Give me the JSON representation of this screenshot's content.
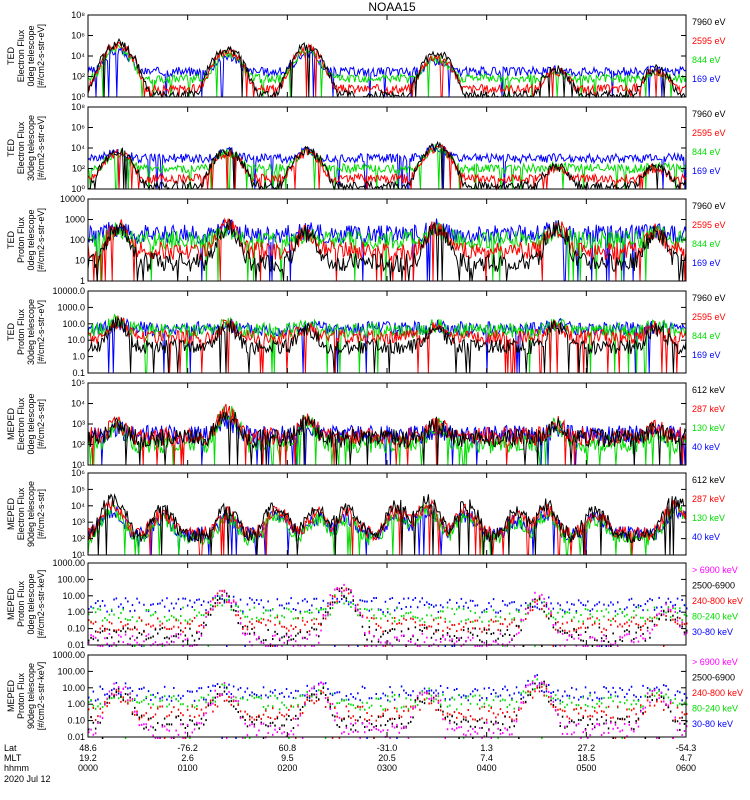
{
  "title": "NOAA15",
  "colors": {
    "blue": "#0000ff",
    "red": "#ff0000",
    "green": "#00dd00",
    "black": "#000000",
    "magenta": "#ff00ff"
  },
  "chart_data": [
    {
      "type": "line",
      "scale": "log",
      "ylabel_lines": [
        "TED",
        "Electron Flux",
        "0deg telescope",
        "[#/cm2-s-str-eV]"
      ],
      "yticks": [
        {
          "label": "10⁰",
          "v": 1
        },
        {
          "label": "10²",
          "v": 100
        },
        {
          "label": "10⁴",
          "v": 10000
        },
        {
          "label": "10⁶",
          "v": 1000000
        },
        {
          "label": "10⁸",
          "v": 100000000
        }
      ],
      "ylim": [
        1,
        100000000
      ],
      "legend": [
        {
          "text": "7960 eV",
          "color": "#000000"
        },
        {
          "text": "2595 eV",
          "color": "#ff0000"
        },
        {
          "text": "844 eV",
          "color": "#00dd00"
        },
        {
          "text": "169 eV",
          "color": "#0000ff"
        }
      ],
      "series": [
        {
          "name": "169 eV",
          "color": "#0000ff",
          "base": 300,
          "peakmul": 30
        },
        {
          "name": "844 eV",
          "color": "#00dd00",
          "base": 60,
          "peakmul": 20
        },
        {
          "name": "2595 eV",
          "color": "#ff0000",
          "base": 6,
          "peakmul": 10
        },
        {
          "name": "7960 eV",
          "color": "#000000",
          "base": 1.5,
          "peakmul": 6
        }
      ],
      "peaks": [
        0.3,
        1.4,
        2.2,
        3.5,
        4.7,
        5.7
      ],
      "peakheights": [
        1000000,
        300000,
        500000,
        100000,
        3000,
        3000
      ]
    },
    {
      "type": "line",
      "scale": "log",
      "ylabel_lines": [
        "TED",
        "Electron Flux",
        "30deg telescope",
        "[#/cm2-s-str-eV]"
      ],
      "yticks": [
        {
          "label": "10⁰",
          "v": 1
        },
        {
          "label": "10²",
          "v": 100
        },
        {
          "label": "10⁴",
          "v": 10000
        },
        {
          "label": "10⁶",
          "v": 1000000
        },
        {
          "label": "10⁸",
          "v": 100000000
        }
      ],
      "ylim": [
        1,
        100000000
      ],
      "legend": [
        {
          "text": "7960 eV",
          "color": "#000000"
        },
        {
          "text": "2595 eV",
          "color": "#ff0000"
        },
        {
          "text": "844 eV",
          "color": "#00dd00"
        },
        {
          "text": "169 eV",
          "color": "#0000ff"
        }
      ],
      "series": [
        {
          "name": "169 eV",
          "color": "#0000ff",
          "base": 1000,
          "peakmul": 30
        },
        {
          "name": "844 eV",
          "color": "#00dd00",
          "base": 100,
          "peakmul": 30
        },
        {
          "name": "2595 eV",
          "color": "#ff0000",
          "base": 10,
          "peakmul": 30
        },
        {
          "name": "7960 eV",
          "color": "#000000",
          "base": 2,
          "peakmul": 20
        }
      ],
      "peaks": [
        0.3,
        1.4,
        2.2,
        3.5,
        4.7,
        5.7
      ],
      "peakheights": [
        100000,
        100000,
        100000,
        300000,
        3000,
        3000
      ]
    },
    {
      "type": "line",
      "scale": "log",
      "ylabel_lines": [
        "TED",
        "Proton Flux",
        "0deg telescope",
        "[#/cm2-s-str-eV]"
      ],
      "yticks": [
        {
          "label": "1",
          "v": 1
        },
        {
          "label": "10",
          "v": 10
        },
        {
          "label": "100",
          "v": 100
        },
        {
          "label": "1000",
          "v": 1000
        },
        {
          "label": "10000",
          "v": 10000
        }
      ],
      "ylim": [
        1,
        10000
      ],
      "legend": [
        {
          "text": "7960 eV",
          "color": "#000000"
        },
        {
          "text": "2595 eV",
          "color": "#ff0000"
        },
        {
          "text": "844 eV",
          "color": "#00dd00"
        },
        {
          "text": "169 eV",
          "color": "#0000ff"
        }
      ],
      "series": [
        {
          "name": "169 eV",
          "color": "#0000ff",
          "base": 200,
          "peakmul": 10
        },
        {
          "name": "844 eV",
          "color": "#00dd00",
          "base": 100,
          "peakmul": 10
        },
        {
          "name": "2595 eV",
          "color": "#ff0000",
          "base": 30,
          "peakmul": 5
        },
        {
          "name": "7960 eV",
          "color": "#000000",
          "base": 8,
          "peakmul": 5
        }
      ],
      "peaks": [
        0.3,
        1.4,
        2.2,
        3.5,
        4.7,
        5.7
      ],
      "peakheights": [
        2000,
        2000,
        1000,
        2000,
        2000,
        1000
      ]
    },
    {
      "type": "line",
      "scale": "log",
      "ylabel_lines": [
        "TED",
        "Proton Flux",
        "30deg telescope",
        "[#/cm2-s-str-eV]"
      ],
      "yticks": [
        {
          "label": "0.1",
          "v": 0.1
        },
        {
          "label": "1.0",
          "v": 1
        },
        {
          "label": "10.0",
          "v": 10
        },
        {
          "label": "100.0",
          "v": 100
        },
        {
          "label": "1000.0",
          "v": 1000
        },
        {
          "label": "10000.0",
          "v": 10000
        }
      ],
      "ylim": [
        0.1,
        10000
      ],
      "legend": [
        {
          "text": "7960 eV",
          "color": "#000000"
        },
        {
          "text": "2595 eV",
          "color": "#ff0000"
        },
        {
          "text": "844 eV",
          "color": "#00dd00"
        },
        {
          "text": "169 eV",
          "color": "#0000ff"
        }
      ],
      "series": [
        {
          "name": "169 eV",
          "color": "#0000ff",
          "base": 50,
          "peakmul": 10
        },
        {
          "name": "844 eV",
          "color": "#00dd00",
          "base": 40,
          "peakmul": 5
        },
        {
          "name": "2595 eV",
          "color": "#ff0000",
          "base": 15,
          "peakmul": 5
        },
        {
          "name": "7960 eV",
          "color": "#000000",
          "base": 4,
          "peakmul": 5
        }
      ],
      "peaks": [
        0.3,
        1.4,
        2.2,
        3.5,
        4.7,
        5.7
      ],
      "peakheights": [
        500,
        300,
        200,
        200,
        300,
        200
      ]
    },
    {
      "type": "line",
      "scale": "log",
      "ylabel_lines": [
        "MEPED",
        "Electron Flux",
        "0deg telescope",
        "[#/cm2-s-str]"
      ],
      "yticks": [
        {
          "label": "10¹",
          "v": 10
        },
        {
          "label": "10²",
          "v": 100
        },
        {
          "label": "10³",
          "v": 1000
        },
        {
          "label": "10⁴",
          "v": 10000
        },
        {
          "label": "10⁵",
          "v": 100000
        }
      ],
      "ylim": [
        10,
        100000
      ],
      "legend": [
        {
          "text": "612 keV",
          "color": "#000000"
        },
        {
          "text": "287 keV",
          "color": "#ff0000"
        },
        {
          "text": "130 keV",
          "color": "#00dd00"
        },
        {
          "text": "40 keV",
          "color": "#0000ff"
        }
      ],
      "series": [
        {
          "name": "40 keV",
          "color": "#0000ff",
          "base": 300,
          "peakmul": 10
        },
        {
          "name": "130 keV",
          "color": "#00dd00",
          "base": 100,
          "peakmul": 3
        },
        {
          "name": "287 keV",
          "color": "#ff0000",
          "base": 250,
          "peakmul": 3
        },
        {
          "name": "612 keV",
          "color": "#000000",
          "base": 200,
          "peakmul": 3
        }
      ],
      "peaks": [
        0.3,
        1.4,
        2.2,
        3.5,
        4.7,
        5.7
      ],
      "peakheights": [
        2000,
        10000,
        3000,
        2000,
        2000,
        1000
      ]
    },
    {
      "type": "line",
      "scale": "log",
      "ylabel_lines": [
        "MEPED",
        "Electron Flux",
        "90deg telescope",
        "[#/cm2-s-str]"
      ],
      "yticks": [
        {
          "label": "10¹",
          "v": 10
        },
        {
          "label": "10²",
          "v": 100
        },
        {
          "label": "10³",
          "v": 1000
        },
        {
          "label": "10⁴",
          "v": 10000
        },
        {
          "label": "10⁵",
          "v": 100000
        },
        {
          "label": "10⁶",
          "v": 1000000
        }
      ],
      "ylim": [
        10,
        1000000
      ],
      "legend": [
        {
          "text": "612 keV",
          "color": "#000000"
        },
        {
          "text": "287 keV",
          "color": "#ff0000"
        },
        {
          "text": "130 keV",
          "color": "#00dd00"
        },
        {
          "text": "40 keV",
          "color": "#0000ff"
        }
      ],
      "series": [
        {
          "name": "40 keV",
          "color": "#0000ff",
          "base": 200,
          "peakmul": 20
        },
        {
          "name": "130 keV",
          "color": "#00dd00",
          "base": 100,
          "peakmul": 20
        },
        {
          "name": "287 keV",
          "color": "#ff0000",
          "base": 200,
          "peakmul": 10
        },
        {
          "name": "612 keV",
          "color": "#000000",
          "base": 150,
          "peakmul": 5
        }
      ],
      "peaks": [
        0.25,
        0.75,
        1.4,
        1.9,
        2.3,
        2.6,
        3.1,
        3.4,
        3.8,
        4.3,
        4.6,
        5.1,
        5.9
      ],
      "peakheights": [
        100000,
        30000,
        30000,
        50000,
        30000,
        30000,
        50000,
        100000,
        50000,
        20000,
        50000,
        30000,
        100000
      ]
    },
    {
      "type": "scatter",
      "scale": "log",
      "ylabel_lines": [
        "MEPED",
        "Proton Flux",
        "0deg telescope",
        "[#/cm2-s-str-keV]"
      ],
      "yticks": [
        {
          "label": "0.01",
          "v": 0.01
        },
        {
          "label": "0.10",
          "v": 0.1
        },
        {
          "label": "1.00",
          "v": 1
        },
        {
          "label": "10.00",
          "v": 10
        },
        {
          "label": "100.00",
          "v": 100
        },
        {
          "label": "1000.00",
          "v": 1000
        }
      ],
      "ylim": [
        0.01,
        1000
      ],
      "legend": [
        {
          "text": "> 6900 keV",
          "color": "#ff00ff"
        },
        {
          "text": "2500-6900",
          "color": "#000000"
        },
        {
          "text": "240-800 keV",
          "color": "#ff0000"
        },
        {
          "text": "80-240 keV",
          "color": "#00dd00"
        },
        {
          "text": "30-80 keV",
          "color": "#0000ff"
        }
      ],
      "series": [
        {
          "name": "30-80 keV",
          "color": "#0000ff",
          "base": 3,
          "peakmul": 10
        },
        {
          "name": "80-240 keV",
          "color": "#00dd00",
          "base": 0.8,
          "peakmul": 10
        },
        {
          "name": "240-800 keV",
          "color": "#ff0000",
          "base": 0.2,
          "peakmul": 5
        },
        {
          "name": "2500-6900",
          "color": "#000000",
          "base": 0.05,
          "peakmul": 5
        },
        {
          "name": "> 6900 keV",
          "color": "#ff00ff",
          "base": 0.02,
          "peakmul": 3
        }
      ],
      "peaks": [
        1.35,
        2.55,
        4.5,
        5.8
      ],
      "peakheights": [
        50,
        100,
        20,
        5
      ]
    },
    {
      "type": "scatter",
      "scale": "log",
      "ylabel_lines": [
        "MEPED",
        "Proton Flux",
        "90deg telescope",
        "[#/cm2-s-str-keV]"
      ],
      "yticks": [
        {
          "label": "0.01",
          "v": 0.01
        },
        {
          "label": "0.10",
          "v": 0.1
        },
        {
          "label": "1.00",
          "v": 1
        },
        {
          "label": "10.00",
          "v": 10
        },
        {
          "label": "100.00",
          "v": 100
        },
        {
          "label": "1000.00",
          "v": 1000
        }
      ],
      "ylim": [
        0.01,
        1000
      ],
      "legend": [
        {
          "text": "> 6900 keV",
          "color": "#ff00ff"
        },
        {
          "text": "2500-6900",
          "color": "#000000"
        },
        {
          "text": "240-800 keV",
          "color": "#ff0000"
        },
        {
          "text": "80-240 keV",
          "color": "#00dd00"
        },
        {
          "text": "30-80 keV",
          "color": "#0000ff"
        }
      ],
      "series": [
        {
          "name": "30-80 keV",
          "color": "#0000ff",
          "base": 5,
          "peakmul": 5
        },
        {
          "name": "80-240 keV",
          "color": "#00dd00",
          "base": 1.5,
          "peakmul": 5
        },
        {
          "name": "240-800 keV",
          "color": "#ff0000",
          "base": 0.3,
          "peakmul": 10
        },
        {
          "name": "2500-6900",
          "color": "#000000",
          "base": 0.08,
          "peakmul": 5
        },
        {
          "name": "> 6900 keV",
          "color": "#ff00ff",
          "base": 0.03,
          "peakmul": 3
        }
      ],
      "peaks": [
        0.3,
        1.35,
        2.3,
        3.4,
        4.5,
        5.7
      ],
      "peakheights": [
        30,
        30,
        30,
        20,
        100,
        20
      ]
    }
  ],
  "xaxis": {
    "row_labels": [
      "Lat",
      "MLT",
      "hhmm",
      "2020 Jul 12"
    ],
    "ticks": [
      {
        "x": 0,
        "lat": "48.6",
        "mlt": "19.2",
        "hhmm": "0000"
      },
      {
        "x": 1,
        "lat": "-76.2",
        "mlt": "2.6",
        "hhmm": "0100"
      },
      {
        "x": 2,
        "lat": "60.8",
        "mlt": "9.5",
        "hhmm": "0200"
      },
      {
        "x": 3,
        "lat": "-31.0",
        "mlt": "20.5",
        "hhmm": "0300"
      },
      {
        "x": 4,
        "lat": "1.3",
        "mlt": "7.4",
        "hhmm": "0400"
      },
      {
        "x": 5,
        "lat": "27.2",
        "mlt": "18.5",
        "hhmm": "0500"
      },
      {
        "x": 6,
        "lat": "-54.3",
        "mlt": "4.7",
        "hhmm": "0600"
      }
    ],
    "xlim": [
      0,
      6
    ]
  }
}
